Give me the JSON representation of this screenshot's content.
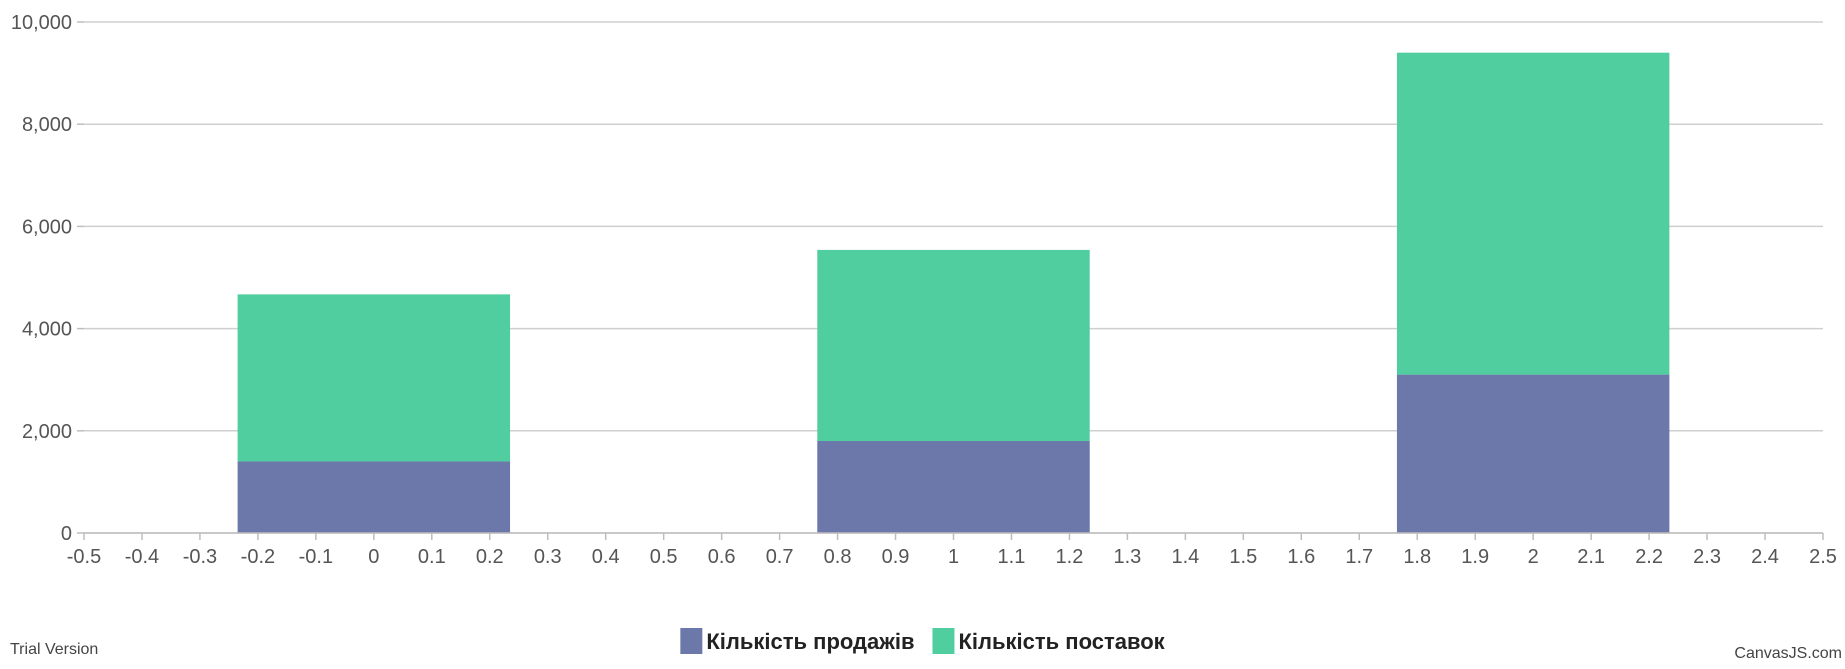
{
  "chart_data": {
    "type": "bar",
    "stacked": true,
    "x": [
      0,
      1,
      2
    ],
    "series": [
      {
        "name": "Кількість продажів",
        "values": [
          1400,
          1800,
          3100
        ],
        "color": "#6c77aa"
      },
      {
        "name": "Кількість поставок",
        "values": [
          3270,
          3740,
          6300
        ],
        "color": "#51cea0"
      }
    ],
    "xlim": [
      -0.5,
      2.5
    ],
    "ylim": [
      0,
      10000
    ],
    "x_ticks": [
      "-0.5",
      "-0.4",
      "-0.3",
      "-0.2",
      "-0.1",
      "0",
      "0.1",
      "0.2",
      "0.3",
      "0.4",
      "0.5",
      "0.6",
      "0.7",
      "0.8",
      "0.9",
      "1",
      "1.1",
      "1.2",
      "1.3",
      "1.4",
      "1.5",
      "1.6",
      "1.7",
      "1.8",
      "1.9",
      "2",
      "2.1",
      "2.2",
      "2.3",
      "2.4",
      "2.5"
    ],
    "y_ticks": [
      "0",
      "2,000",
      "4,000",
      "6,000",
      "8,000",
      "10,000"
    ],
    "grid": true,
    "legend_position": "bottom-center"
  },
  "footer": {
    "trial_label": "Trial Version",
    "credit_label": "CanvasJS.com"
  }
}
